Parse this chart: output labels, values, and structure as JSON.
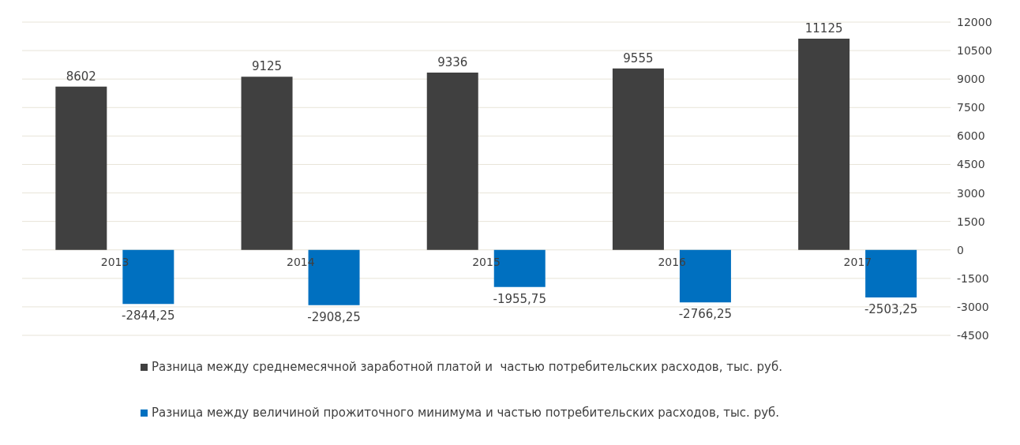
{
  "chart_data": {
    "type": "bar",
    "categories": [
      "2013",
      "2014",
      "2015",
      "2016",
      "2017"
    ],
    "series": [
      {
        "name": "Разница между среднемесячной заработной платой и  частью потребительских расходов, тыс. руб.",
        "color": "#404040",
        "values": [
          8602,
          9125,
          9336,
          9555,
          11125
        ],
        "value_labels": [
          "8602",
          "9125",
          "9336",
          "9555",
          "11125"
        ]
      },
      {
        "name": "Разница между величиной прожиточного минимума и частью потребительских расходов, тыс. руб.",
        "color": "#0070c0",
        "values": [
          -2844.25,
          -2908.25,
          -1955.75,
          -2766.25,
          -2503.25
        ],
        "value_labels": [
          "-2844,25",
          "-2908,25",
          "-1955,75",
          "-2766,25",
          "-2503,25"
        ]
      }
    ],
    "ylim": [
      -4500,
      12000
    ],
    "yticks": [
      -4500,
      -3000,
      -1500,
      0,
      1500,
      3000,
      4500,
      6000,
      7500,
      9000,
      10500,
      12000
    ],
    "grid": "y",
    "legend": "bottom"
  }
}
